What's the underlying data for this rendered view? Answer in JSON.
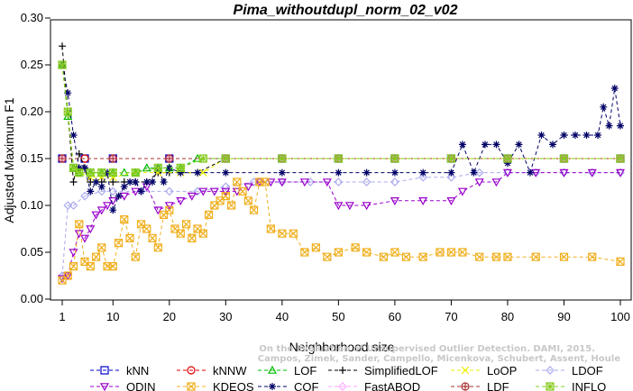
{
  "chart_data": {
    "type": "line",
    "title": "Pima_withoutdupl_norm_02_v02",
    "xlabel": "Neighborhood size",
    "ylabel": "Adjusted Maximum F1",
    "xlim": [
      1,
      100
    ],
    "ylim": [
      0,
      0.3
    ],
    "xticks": [
      1,
      10,
      20,
      30,
      40,
      50,
      60,
      70,
      80,
      90,
      100
    ],
    "yticks": [
      0.0,
      0.05,
      0.1,
      0.15,
      0.2,
      0.25,
      0.3
    ],
    "ytick_labels": [
      "0.00",
      "0.05",
      "0.10",
      "0.15",
      "0.20",
      "0.25",
      "0.30"
    ],
    "grid": false,
    "legend_position": "bottom",
    "watermark": [
      "Campos, Zimek, Sander, Campello, Micenkova, Schubert, Assent, Houle",
      "On the Evaluation of Unsupervised Outlier Detection. DAMI, 2015."
    ],
    "series": [
      {
        "name": "kNN",
        "color": "#0000cc",
        "marker": "square",
        "x": [
          1,
          5,
          10,
          20,
          30,
          40,
          50,
          60,
          70,
          80,
          90,
          100
        ],
        "y": [
          0.15,
          0.15,
          0.15,
          0.15,
          0.15,
          0.15,
          0.15,
          0.15,
          0.15,
          0.15,
          0.15,
          0.15
        ]
      },
      {
        "name": "kNNW",
        "color": "#dd0000",
        "marker": "circle",
        "x": [
          1,
          5,
          10,
          20,
          30,
          40,
          50,
          60,
          70,
          80,
          90,
          100
        ],
        "y": [
          0.15,
          0.15,
          0.15,
          0.15,
          0.15,
          0.15,
          0.15,
          0.15,
          0.15,
          0.15,
          0.15,
          0.15
        ]
      },
      {
        "name": "LOF",
        "color": "#00bb00",
        "marker": "triangle-up",
        "x": [
          1,
          2,
          3,
          4,
          6,
          8,
          10,
          12,
          14,
          16,
          18,
          20,
          22,
          25,
          30,
          40,
          50,
          60,
          70,
          80,
          90,
          100
        ],
        "y": [
          0.25,
          0.195,
          0.14,
          0.135,
          0.135,
          0.135,
          0.135,
          0.135,
          0.135,
          0.14,
          0.14,
          0.14,
          0.14,
          0.15,
          0.15,
          0.15,
          0.15,
          0.15,
          0.15,
          0.15,
          0.15,
          0.15
        ]
      },
      {
        "name": "SimplifiedLOF",
        "color": "#000000",
        "marker": "plus",
        "x": [
          1,
          2,
          3,
          4,
          5,
          6,
          7,
          8,
          10,
          12,
          14,
          16,
          18,
          20,
          22,
          25,
          30,
          40,
          50,
          60,
          70,
          80,
          90,
          100
        ],
        "y": [
          0.27,
          0.2,
          0.125,
          0.155,
          0.14,
          0.125,
          0.125,
          0.125,
          0.125,
          0.125,
          0.125,
          0.125,
          0.135,
          0.135,
          0.135,
          0.135,
          0.15,
          0.15,
          0.15,
          0.15,
          0.15,
          0.15,
          0.15,
          0.15
        ]
      },
      {
        "name": "LoOP",
        "color": "#eeee00",
        "marker": "cross",
        "x": [
          1,
          2,
          3,
          4,
          6,
          8,
          10,
          14,
          18,
          22,
          26,
          30,
          40,
          50,
          60,
          70,
          80,
          90,
          100
        ],
        "y": [
          0.25,
          0.2,
          0.14,
          0.135,
          0.13,
          0.13,
          0.13,
          0.135,
          0.135,
          0.135,
          0.135,
          0.15,
          0.15,
          0.15,
          0.15,
          0.15,
          0.15,
          0.15,
          0.15
        ]
      },
      {
        "name": "LDOF",
        "color": "#aaaaee",
        "marker": "diamond",
        "x": [
          1,
          2,
          3,
          5,
          8,
          10,
          15,
          20,
          25,
          30,
          35,
          40,
          45,
          50,
          55,
          60,
          65,
          70,
          75,
          80,
          85,
          90,
          95,
          100
        ],
        "y": [
          0.025,
          0.1,
          0.1,
          0.11,
          0.115,
          0.115,
          0.115,
          0.115,
          0.115,
          0.12,
          0.125,
          0.125,
          0.125,
          0.125,
          0.125,
          0.125,
          0.13,
          0.13,
          0.135,
          0.135,
          0.135,
          0.135,
          0.135,
          0.135
        ]
      },
      {
        "name": "ODIN",
        "color": "#9900cc",
        "marker": "triangle-down",
        "x": [
          1,
          2,
          3,
          4,
          5,
          6,
          7,
          8,
          9,
          10,
          12,
          14,
          16,
          18,
          20,
          22,
          24,
          26,
          28,
          30,
          32,
          34,
          36,
          38,
          40,
          44,
          48,
          50,
          52,
          55,
          60,
          65,
          70,
          72,
          75,
          78,
          80,
          85,
          90,
          95,
          100
        ],
        "y": [
          0.022,
          0.025,
          0.05,
          0.07,
          0.065,
          0.075,
          0.09,
          0.095,
          0.1,
          0.105,
          0.11,
          0.115,
          0.12,
          0.095,
          0.1,
          0.105,
          0.11,
          0.115,
          0.115,
          0.115,
          0.115,
          0.12,
          0.125,
          0.125,
          0.125,
          0.125,
          0.125,
          0.1,
          0.1,
          0.1,
          0.105,
          0.105,
          0.105,
          0.115,
          0.125,
          0.125,
          0.135,
          0.135,
          0.135,
          0.135,
          0.135
        ]
      },
      {
        "name": "KDEOS",
        "color": "#f0b020",
        "marker": "square-x",
        "x": [
          1,
          2,
          3,
          4,
          5,
          6,
          7,
          8,
          9,
          10,
          11,
          12,
          13,
          14,
          15,
          16,
          17,
          18,
          19,
          20,
          21,
          22,
          23,
          24,
          25,
          26,
          27,
          28,
          29,
          30,
          31,
          32,
          33,
          34,
          35,
          36,
          37,
          38,
          40,
          42,
          44,
          46,
          48,
          50,
          53,
          55,
          58,
          60,
          62,
          65,
          68,
          70,
          72,
          75,
          78,
          80,
          85,
          90,
          95,
          100
        ],
        "y": [
          0.02,
          0.025,
          0.035,
          0.08,
          0.04,
          0.035,
          0.045,
          0.055,
          0.035,
          0.035,
          0.06,
          0.085,
          0.065,
          0.045,
          0.08,
          0.075,
          0.065,
          0.055,
          0.09,
          0.095,
          0.075,
          0.07,
          0.08,
          0.065,
          0.075,
          0.07,
          0.09,
          0.1,
          0.105,
          0.11,
          0.1,
          0.125,
          0.115,
          0.105,
          0.095,
          0.125,
          0.125,
          0.075,
          0.07,
          0.07,
          0.05,
          0.055,
          0.045,
          0.05,
          0.055,
          0.05,
          0.045,
          0.05,
          0.045,
          0.045,
          0.05,
          0.05,
          0.05,
          0.045,
          0.045,
          0.045,
          0.045,
          0.045,
          0.045,
          0.04
        ]
      },
      {
        "name": "COF",
        "color": "#000066",
        "marker": "asterisk",
        "x": [
          1,
          2,
          3,
          4,
          5,
          6,
          7,
          8,
          9,
          10,
          11,
          12,
          13,
          14,
          15,
          16,
          17,
          18,
          19,
          20,
          22,
          25,
          30,
          40,
          50,
          55,
          60,
          65,
          70,
          72,
          74,
          76,
          78,
          80,
          82,
          84,
          86,
          88,
          90,
          92,
          94,
          96,
          97,
          98,
          99,
          100
        ],
        "y": [
          0.25,
          0.22,
          0.175,
          0.14,
          0.14,
          0.115,
          0.125,
          0.12,
          0.135,
          0.095,
          0.11,
          0.12,
          0.125,
          0.125,
          0.115,
          0.125,
          0.125,
          0.14,
          0.125,
          0.14,
          0.135,
          0.135,
          0.135,
          0.135,
          0.135,
          0.135,
          0.135,
          0.135,
          0.135,
          0.165,
          0.135,
          0.165,
          0.165,
          0.145,
          0.165,
          0.135,
          0.175,
          0.165,
          0.175,
          0.175,
          0.175,
          0.175,
          0.205,
          0.185,
          0.225,
          0.185
        ]
      },
      {
        "name": "FastABOD",
        "color": "#ffaaff",
        "marker": "diamond",
        "x": [
          1,
          10,
          20,
          30,
          40,
          50,
          60,
          70,
          80,
          90,
          100
        ],
        "y": [
          0.15,
          0.15,
          0.15,
          0.15,
          0.15,
          0.15,
          0.15,
          0.15,
          0.15,
          0.15,
          0.15
        ]
      },
      {
        "name": "LDF",
        "color": "#aa3333",
        "marker": "circle-plus",
        "x": [
          1,
          10,
          20,
          30,
          40,
          50,
          60,
          70,
          80,
          90,
          100
        ],
        "y": [
          0.15,
          0.15,
          0.15,
          0.15,
          0.15,
          0.15,
          0.15,
          0.15,
          0.15,
          0.15,
          0.15
        ]
      },
      {
        "name": "INFLO",
        "color": "#88cc22",
        "marker": "square-cross",
        "x": [
          1,
          2,
          3,
          4,
          6,
          8,
          10,
          14,
          18,
          22,
          26,
          30,
          40,
          50,
          60,
          70,
          80,
          90,
          100
        ],
        "y": [
          0.25,
          0.2,
          0.14,
          0.135,
          0.135,
          0.135,
          0.135,
          0.135,
          0.14,
          0.14,
          0.15,
          0.15,
          0.15,
          0.15,
          0.15,
          0.15,
          0.15,
          0.15,
          0.15
        ]
      }
    ]
  }
}
